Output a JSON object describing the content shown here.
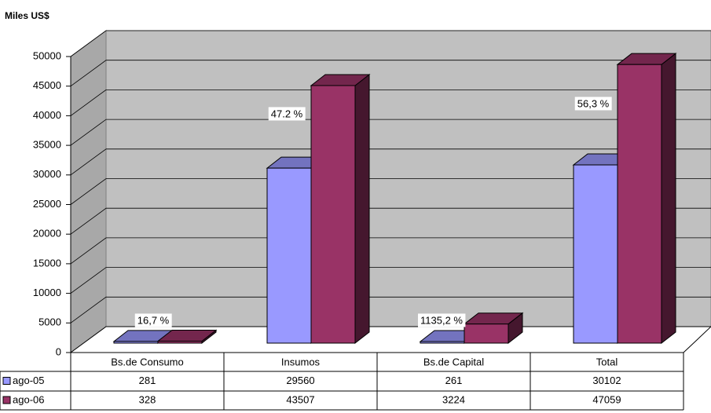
{
  "chart_data": {
    "type": "bar3d",
    "y_label": "Miles US$",
    "categories": [
      "Bs.de Consumo",
      "Insumos",
      "Bs.de Capital",
      "Total"
    ],
    "series": [
      {
        "name": "ago-05",
        "color": "#9999ff",
        "values": [
          281,
          29560,
          261,
          30102
        ]
      },
      {
        "name": "ago-06",
        "color": "#993366",
        "values": [
          328,
          43507,
          3224,
          47059
        ]
      }
    ],
    "annotations": [
      "16,7 %",
      "47.2 %",
      "1135,2 %",
      "56,3 %"
    ],
    "ylim": [
      0,
      50000
    ],
    "yticks": [
      0,
      5000,
      10000,
      15000,
      20000,
      25000,
      30000,
      35000,
      40000,
      45000,
      50000
    ],
    "grid": true,
    "data_table": true
  }
}
